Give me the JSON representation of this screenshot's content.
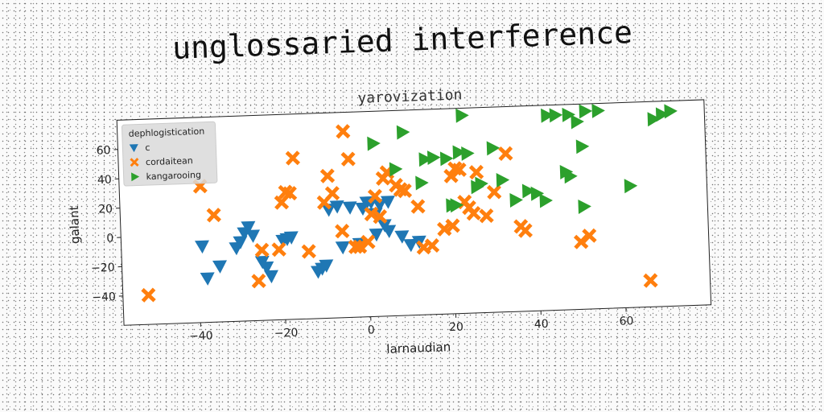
{
  "header": {
    "title": "unglossaried interference"
  },
  "chart_data": {
    "type": "scatter",
    "title": "yarovization",
    "xlabel": "larnaudian",
    "ylabel": "galant",
    "xlim": [
      -58,
      80
    ],
    "ylim": [
      -60,
      80
    ],
    "xticks": [
      -40,
      -20,
      0,
      20,
      40,
      60
    ],
    "yticks": [
      -40,
      -20,
      0,
      20,
      40,
      60
    ],
    "xtick_labels": [
      "−40",
      "−20",
      "0",
      "20",
      "40",
      "60"
    ],
    "ytick_labels": [
      "−40",
      "−20",
      "0",
      "20",
      "40",
      "60"
    ],
    "grid": false,
    "legend": {
      "title": "dephlogistication",
      "position": "top-left"
    },
    "series": [
      {
        "name": "c",
        "marker": "triangle-down",
        "color": "#1f77b4",
        "points": [
          [
            -39,
            -8
          ],
          [
            -38,
            -30
          ],
          [
            -35,
            -22
          ],
          [
            -31,
            -10
          ],
          [
            -30,
            -6
          ],
          [
            -29,
            0
          ],
          [
            -28,
            4
          ],
          [
            -27,
            -2
          ],
          [
            -25,
            -20
          ],
          [
            -24,
            -24
          ],
          [
            -23,
            -30
          ],
          [
            -20,
            -6
          ],
          [
            -19,
            -5
          ],
          [
            -18,
            -4
          ],
          [
            -12,
            -28
          ],
          [
            -11,
            -26
          ],
          [
            -10,
            -24
          ],
          [
            -9,
            14
          ],
          [
            -7,
            16
          ],
          [
            -4,
            15
          ],
          [
            -2,
            -10
          ],
          [
            -1,
            14
          ],
          [
            0,
            18
          ],
          [
            1,
            18
          ],
          [
            2,
            10
          ],
          [
            3,
            16
          ],
          [
            4,
            2
          ],
          [
            5,
            -2
          ],
          [
            5,
            18
          ],
          [
            8,
            -6
          ],
          [
            10,
            -12
          ],
          [
            12,
            -10
          ],
          [
            2,
            -4
          ],
          [
            -6,
            -12
          ]
        ]
      },
      {
        "name": "cordaitean",
        "marker": "x-thick",
        "color": "#ff7f0e",
        "points": [
          [
            -52,
            -40
          ],
          [
            -39,
            33
          ],
          [
            -36,
            13
          ],
          [
            -26,
            -33
          ],
          [
            -25,
            -12
          ],
          [
            -21,
            -12
          ],
          [
            -20,
            20
          ],
          [
            -19,
            27
          ],
          [
            -18,
            26
          ],
          [
            -17,
            50
          ],
          [
            -14,
            -14
          ],
          [
            -10,
            19
          ],
          [
            -9,
            37
          ],
          [
            -8,
            25
          ],
          [
            -6,
            -1
          ],
          [
            -5,
            67
          ],
          [
            -4,
            48
          ],
          [
            -3,
            -12
          ],
          [
            -2,
            -12
          ],
          [
            0,
            -9
          ],
          [
            1,
            10
          ],
          [
            2,
            22
          ],
          [
            3,
            8
          ],
          [
            4,
            34
          ],
          [
            5,
            38
          ],
          [
            7,
            29
          ],
          [
            8,
            26
          ],
          [
            9,
            25
          ],
          [
            12,
            14
          ],
          [
            13,
            -14
          ],
          [
            15,
            -13
          ],
          [
            18,
            -2
          ],
          [
            20,
            0
          ],
          [
            20,
            34
          ],
          [
            21,
            39
          ],
          [
            22,
            38
          ],
          [
            23,
            16
          ],
          [
            24,
            12
          ],
          [
            25,
            8
          ],
          [
            26,
            36
          ],
          [
            28,
            6
          ],
          [
            30,
            22
          ],
          [
            33,
            48
          ],
          [
            36,
            -2
          ],
          [
            37,
            -5
          ],
          [
            50,
            -14
          ],
          [
            52,
            -10
          ],
          [
            66,
            -42
          ]
        ]
      },
      {
        "name": "kangarooing",
        "marker": "triangle-right",
        "color": "#2ca02c",
        "points": [
          [
            2,
            58
          ],
          [
            7,
            40
          ],
          [
            9,
            65
          ],
          [
            13,
            30
          ],
          [
            14,
            46
          ],
          [
            16,
            47
          ],
          [
            19,
            46
          ],
          [
            20,
            14
          ],
          [
            21,
            14
          ],
          [
            22,
            50
          ],
          [
            23,
            75
          ],
          [
            24,
            49
          ],
          [
            26,
            26
          ],
          [
            27,
            28
          ],
          [
            30,
            52
          ],
          [
            32,
            30
          ],
          [
            35,
            16
          ],
          [
            38,
            22
          ],
          [
            40,
            20
          ],
          [
            42,
            15
          ],
          [
            43,
            73
          ],
          [
            45,
            73
          ],
          [
            47,
            34
          ],
          [
            48,
            31
          ],
          [
            48,
            73
          ],
          [
            50,
            68
          ],
          [
            51,
            10
          ],
          [
            51,
            51
          ],
          [
            52,
            75
          ],
          [
            55,
            75
          ],
          [
            62,
            23
          ],
          [
            68,
            68
          ],
          [
            70,
            71
          ],
          [
            72,
            73
          ]
        ]
      }
    ]
  }
}
